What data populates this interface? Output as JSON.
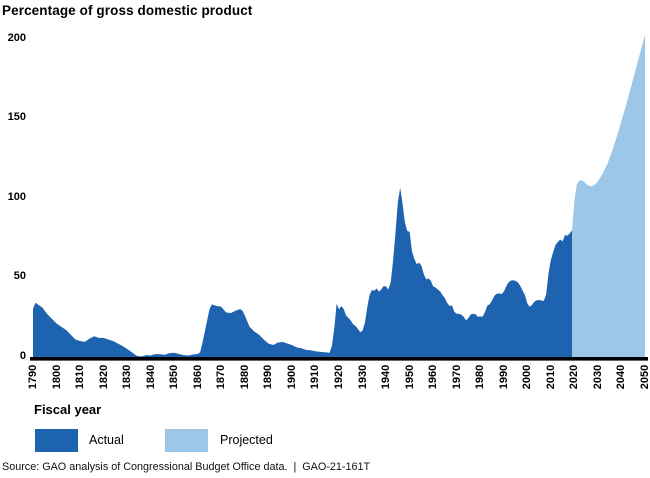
{
  "chart_data": {
    "type": "area",
    "title": "Percentage of gross domestic product",
    "xlabel": "Fiscal year",
    "source_note": "Source: GAO analysis of Congressional Budget Office data.  |  GAO-21-161T",
    "xlim": [
      1790,
      2050
    ],
    "ylim": [
      0,
      200
    ],
    "y_ticks": [
      0,
      50,
      100,
      150,
      200
    ],
    "x_ticks": [
      1790,
      1800,
      1810,
      1820,
      1830,
      1840,
      1850,
      1860,
      1870,
      1880,
      1890,
      1900,
      1910,
      1920,
      1930,
      1940,
      1950,
      1960,
      1970,
      1980,
      1990,
      2000,
      2010,
      2020,
      2030,
      2040,
      2050
    ],
    "grid": false,
    "legend_position": "bottom",
    "axis_color": "#000000",
    "legend": [
      {
        "label": "Actual",
        "color": "#1E63AF"
      },
      {
        "label": "Projected",
        "color": "#9CC7E8"
      }
    ],
    "series": [
      {
        "name": "Actual",
        "color": "#1E63AF",
        "points": [
          [
            1790,
            30
          ],
          [
            1791,
            34
          ],
          [
            1792,
            33
          ],
          [
            1794,
            31
          ],
          [
            1796,
            27
          ],
          [
            1798,
            24
          ],
          [
            1800,
            21
          ],
          [
            1802,
            19
          ],
          [
            1804,
            17
          ],
          [
            1806,
            14
          ],
          [
            1808,
            11
          ],
          [
            1810,
            10
          ],
          [
            1812,
            9.5
          ],
          [
            1814,
            11.5
          ],
          [
            1816,
            13
          ],
          [
            1818,
            12
          ],
          [
            1820,
            12
          ],
          [
            1822,
            11
          ],
          [
            1824,
            10
          ],
          [
            1826,
            8.5
          ],
          [
            1828,
            7
          ],
          [
            1830,
            5
          ],
          [
            1832,
            3
          ],
          [
            1834,
            0.8
          ],
          [
            1836,
            0.3
          ],
          [
            1838,
            1.2
          ],
          [
            1840,
            1
          ],
          [
            1842,
            1.8
          ],
          [
            1844,
            1.7
          ],
          [
            1846,
            1.4
          ],
          [
            1848,
            2.4
          ],
          [
            1850,
            2.7
          ],
          [
            1852,
            1.9
          ],
          [
            1854,
            1.2
          ],
          [
            1856,
            0.9
          ],
          [
            1858,
            1.6
          ],
          [
            1860,
            1.9
          ],
          [
            1861,
            3
          ],
          [
            1862,
            9
          ],
          [
            1863,
            16
          ],
          [
            1864,
            23
          ],
          [
            1865,
            30
          ],
          [
            1866,
            33
          ],
          [
            1868,
            32
          ],
          [
            1870,
            31.5
          ],
          [
            1872,
            28
          ],
          [
            1874,
            27.5
          ],
          [
            1876,
            29
          ],
          [
            1878,
            30
          ],
          [
            1879,
            29
          ],
          [
            1880,
            26
          ],
          [
            1882,
            19
          ],
          [
            1884,
            16
          ],
          [
            1886,
            14
          ],
          [
            1888,
            11
          ],
          [
            1890,
            8.5
          ],
          [
            1892,
            7.5
          ],
          [
            1894,
            9
          ],
          [
            1896,
            9.5
          ],
          [
            1898,
            8.5
          ],
          [
            1900,
            7.5
          ],
          [
            1902,
            6
          ],
          [
            1904,
            5.5
          ],
          [
            1906,
            4.5
          ],
          [
            1908,
            4.2
          ],
          [
            1910,
            3.6
          ],
          [
            1912,
            3.2
          ],
          [
            1914,
            3
          ],
          [
            1916,
            2.7
          ],
          [
            1917,
            7
          ],
          [
            1918,
            18
          ],
          [
            1919,
            33.5
          ],
          [
            1920,
            29.9
          ],
          [
            1921,
            32
          ],
          [
            1922,
            30
          ],
          [
            1923,
            26
          ],
          [
            1924,
            24.5
          ],
          [
            1925,
            22.9
          ],
          [
            1926,
            20.5
          ],
          [
            1927,
            19.5
          ],
          [
            1928,
            17.7
          ],
          [
            1929,
            15.5
          ],
          [
            1930,
            16.5
          ],
          [
            1931,
            21.5
          ],
          [
            1932,
            31
          ],
          [
            1933,
            39
          ],
          [
            1934,
            42
          ],
          [
            1935,
            41.5
          ],
          [
            1936,
            43
          ],
          [
            1937,
            41
          ],
          [
            1938,
            42.5
          ],
          [
            1939,
            44.5
          ],
          [
            1940,
            44.2
          ],
          [
            1941,
            42.3
          ],
          [
            1942,
            47
          ],
          [
            1943,
            61
          ],
          [
            1944,
            78
          ],
          [
            1945,
            97
          ],
          [
            1946,
            106.1
          ],
          [
            1947,
            96.2
          ],
          [
            1948,
            84.3
          ],
          [
            1949,
            79
          ],
          [
            1950,
            78.5
          ],
          [
            1951,
            66.3
          ],
          [
            1952,
            61.6
          ],
          [
            1953,
            58.2
          ],
          [
            1954,
            59.2
          ],
          [
            1955,
            57.3
          ],
          [
            1956,
            52
          ],
          [
            1957,
            48.7
          ],
          [
            1958,
            49.2
          ],
          [
            1959,
            47.9
          ],
          [
            1960,
            44.3
          ],
          [
            1961,
            43.6
          ],
          [
            1962,
            42.3
          ],
          [
            1963,
            41.1
          ],
          [
            1964,
            38.8
          ],
          [
            1965,
            36.8
          ],
          [
            1966,
            33.8
          ],
          [
            1967,
            32
          ],
          [
            1968,
            32.3
          ],
          [
            1969,
            28.4
          ],
          [
            1970,
            27.1
          ],
          [
            1971,
            27.1
          ],
          [
            1972,
            26.5
          ],
          [
            1973,
            25.2
          ],
          [
            1974,
            22.9
          ],
          [
            1975,
            24.6
          ],
          [
            1976,
            26.7
          ],
          [
            1977,
            27.1
          ],
          [
            1978,
            26.8
          ],
          [
            1979,
            25.2
          ],
          [
            1980,
            25.5
          ],
          [
            1981,
            25.2
          ],
          [
            1982,
            28.1
          ],
          [
            1983,
            32.2
          ],
          [
            1984,
            33.1
          ],
          [
            1985,
            35.3
          ],
          [
            1986,
            38.5
          ],
          [
            1987,
            39.6
          ],
          [
            1988,
            39.9
          ],
          [
            1989,
            39.4
          ],
          [
            1990,
            40.9
          ],
          [
            1991,
            44.1
          ],
          [
            1992,
            46.8
          ],
          [
            1993,
            47.9
          ],
          [
            1994,
            48.1
          ],
          [
            1995,
            47.7
          ],
          [
            1996,
            46.8
          ],
          [
            1997,
            44.6
          ],
          [
            1998,
            41.7
          ],
          [
            1999,
            38.8
          ],
          [
            2000,
            33.7
          ],
          [
            2001,
            31.5
          ],
          [
            2002,
            32.7
          ],
          [
            2003,
            34.7
          ],
          [
            2004,
            35.6
          ],
          [
            2005,
            35.7
          ],
          [
            2006,
            35.4
          ],
          [
            2007,
            35.2
          ],
          [
            2008,
            39.2
          ],
          [
            2009,
            52.3
          ],
          [
            2010,
            60.8
          ],
          [
            2011,
            65.8
          ],
          [
            2012,
            70.3
          ],
          [
            2013,
            72.2
          ],
          [
            2014,
            73.7
          ],
          [
            2015,
            72.5
          ],
          [
            2016,
            76.4
          ],
          [
            2017,
            76.1
          ],
          [
            2018,
            77.4
          ],
          [
            2019,
            79.4
          ]
        ]
      },
      {
        "name": "Projected",
        "color": "#9CC7E8",
        "points": [
          [
            2019,
            79.4
          ],
          [
            2020,
            98
          ],
          [
            2021,
            108
          ],
          [
            2022,
            110.5
          ],
          [
            2023,
            111
          ],
          [
            2024,
            110
          ],
          [
            2025,
            108.5
          ],
          [
            2026,
            107.5
          ],
          [
            2027,
            107
          ],
          [
            2028,
            107.5
          ],
          [
            2029,
            108.5
          ],
          [
            2030,
            110
          ],
          [
            2032,
            115
          ],
          [
            2034,
            121
          ],
          [
            2036,
            129
          ],
          [
            2038,
            138
          ],
          [
            2040,
            148
          ],
          [
            2042,
            158
          ],
          [
            2044,
            169
          ],
          [
            2046,
            180
          ],
          [
            2048,
            191
          ],
          [
            2050,
            202
          ]
        ]
      }
    ]
  }
}
